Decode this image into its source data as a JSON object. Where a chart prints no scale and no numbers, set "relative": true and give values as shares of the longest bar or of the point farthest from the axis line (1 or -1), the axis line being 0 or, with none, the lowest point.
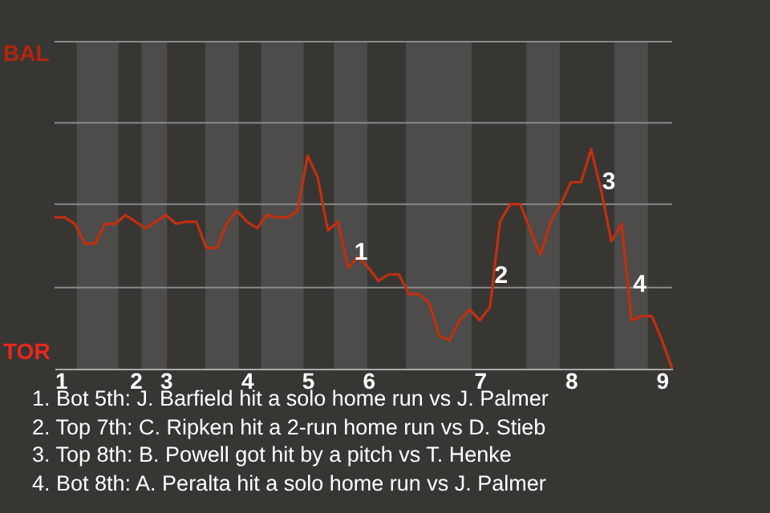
{
  "chart_data": {
    "type": "line",
    "categories": [
      "1",
      null,
      null,
      null,
      null,
      null,
      null,
      null,
      "2",
      null,
      null,
      "3",
      null,
      null,
      null,
      null,
      null,
      null,
      null,
      "4",
      null,
      null,
      null,
      null,
      null,
      "5",
      null,
      null,
      null,
      null,
      null,
      "6",
      null,
      null,
      null,
      null,
      null,
      null,
      null,
      null,
      null,
      null,
      "7",
      null,
      null,
      null,
      null,
      null,
      null,
      null,
      null,
      "8",
      null,
      null,
      null,
      null,
      null,
      null,
      null,
      null,
      "9",
      null
    ],
    "relative": true,
    "series": [
      {
        "color": "#c0300f",
        "values": [
          0.69,
          0.69,
          0.66,
          0.57,
          0.57,
          0.66,
          0.66,
          0.7,
          0.67,
          0.64,
          0.67,
          0.7,
          0.66,
          0.67,
          0.67,
          0.55,
          0.55,
          0.66,
          0.72,
          0.67,
          0.64,
          0.7,
          0.69,
          0.69,
          0.72,
          0.97,
          0.87,
          0.63,
          0.67,
          0.46,
          0.51,
          0.46,
          0.4,
          0.43,
          0.43,
          0.34,
          0.34,
          0.3,
          0.15,
          0.13,
          0.22,
          0.27,
          0.22,
          0.28,
          0.67,
          0.75,
          0.75,
          0.63,
          0.52,
          0.67,
          0.75,
          0.85,
          0.85,
          1,
          0.81,
          0.58,
          0.66,
          0.22,
          0.24,
          0.24,
          0.13,
          0
        ]
      }
    ],
    "ref_lines": [
      {
        "axis": "y",
        "value": 0.37
      },
      {
        "axis": "y",
        "value": 0.75
      },
      {
        "axis": "y",
        "value": 1.12
      }
    ],
    "annotations": [
      "1",
      "2",
      "3",
      "4",
      "BAL",
      "TOR",
      "1. Bot 5th: J. Barfield hit a solo home run vs J. Palmer",
      "2. Top 7th: C. Ripken hit a 2-run home run vs D. Stieb",
      "3. Top 8th: B. Powell got hit by a pitch vs T. Henke",
      "4. Bot 8th: A. Peralta hit a solo home run vs J. Palmer"
    ]
  }
}
